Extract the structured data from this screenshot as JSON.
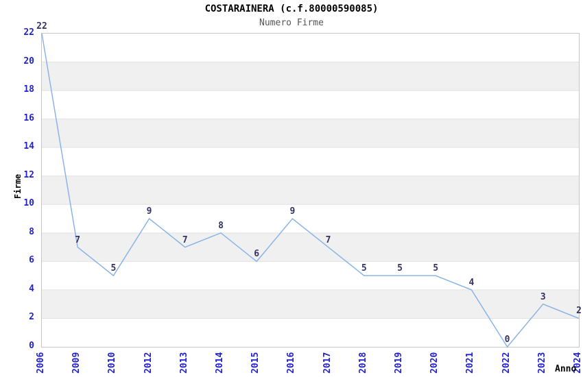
{
  "chart_data": {
    "type": "line",
    "title": "COSTARAINERA (c.f.80000590085)",
    "subtitle": "Numero Firme",
    "xlabel": "Anno",
    "ylabel": "Firme",
    "x": [
      "2006",
      "2009",
      "2010",
      "2012",
      "2013",
      "2014",
      "2015",
      "2016",
      "2017",
      "2018",
      "2019",
      "2020",
      "2021",
      "2022",
      "2023",
      "2024"
    ],
    "values": [
      22,
      7,
      5,
      9,
      7,
      8,
      6,
      9,
      7,
      5,
      5,
      5,
      4,
      0,
      3,
      2
    ],
    "ylim": [
      0,
      22
    ],
    "ytick_step": 2,
    "grid": "horizontal gridlines with alternating shaded bands every 2 units",
    "legend": "none",
    "point_labels_shown": true,
    "colors": {
      "line": "#8ab4e8",
      "band": "#f0f0f0",
      "gridline": "#e2e2e2",
      "plot_border": "#c6c6c6",
      "axis_tick_label": "#2222cc",
      "value_label": "#333366",
      "title": "#000000",
      "subtitle": "#555555"
    }
  }
}
